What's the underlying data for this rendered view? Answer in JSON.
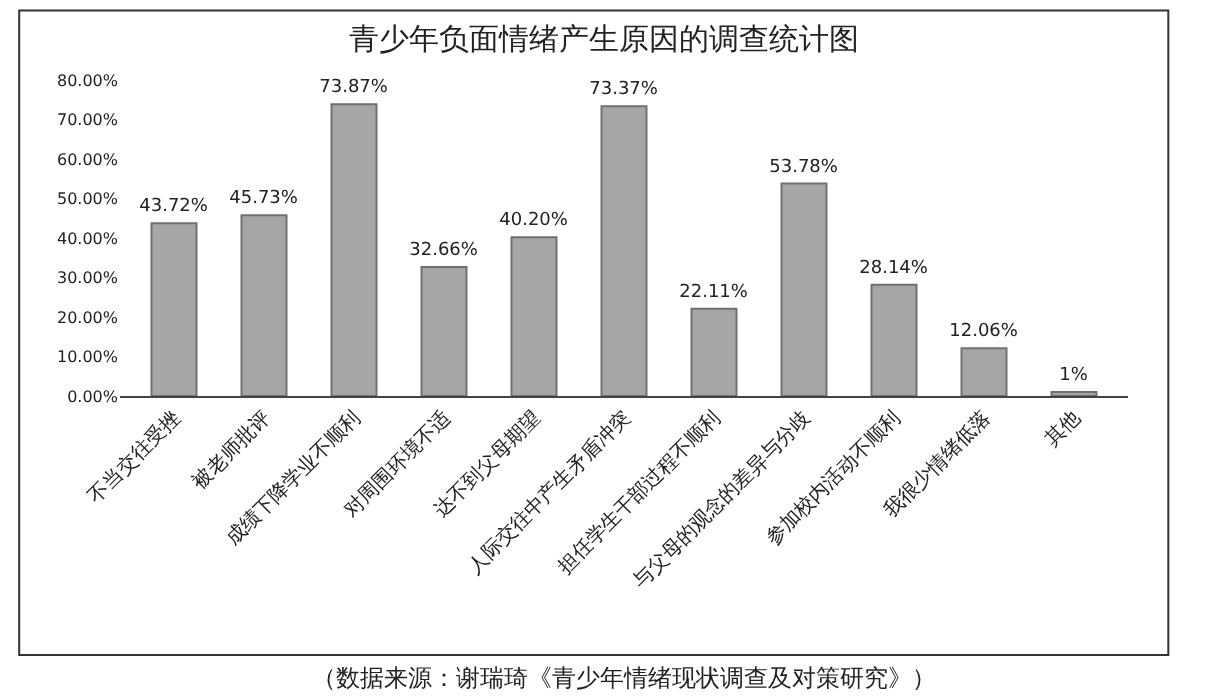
{
  "chart_data": {
    "type": "bar",
    "title": "青少年负面情绪产生原因的调查统计图",
    "categories": [
      "不当交往受挫",
      "被老师批评",
      "成绩下降学业不顺利",
      "对周围环境不适",
      "达不到父母期望",
      "人际交往中产生矛盾冲突",
      "担任学生干部过程不顺利",
      "与父母的观念的差异与分歧",
      "参加校内活动不顺利",
      "我很少情绪低落",
      "其他"
    ],
    "values": [
      43.72,
      45.73,
      73.87,
      32.66,
      40.2,
      73.37,
      22.11,
      53.78,
      28.14,
      12.06,
      1
    ],
    "value_labels": [
      "43.72%",
      "45.73%",
      "73.87%",
      "32.66%",
      "40.20%",
      "73.37%",
      "22.11%",
      "53.78%",
      "28.14%",
      "12.06%",
      "1%"
    ],
    "color": "#a6a6a6",
    "ylim": [
      0,
      80
    ],
    "yticks": [
      {
        "value": 0,
        "label": "0.00%"
      },
      {
        "value": 10,
        "label": "10.00%"
      },
      {
        "value": 20,
        "label": "20.00%"
      },
      {
        "value": 30,
        "label": "30.00%"
      },
      {
        "value": 40,
        "label": "40.00%"
      },
      {
        "value": 50,
        "label": "50.00%"
      },
      {
        "value": 60,
        "label": "60.00%"
      },
      {
        "value": 70,
        "label": "70.00%"
      },
      {
        "value": 80,
        "label": "80.00%"
      }
    ],
    "legend": false,
    "annotations": [
      "（数据来源：谢瑞琦《青少年情绪现状调查及对策研究》）"
    ]
  }
}
